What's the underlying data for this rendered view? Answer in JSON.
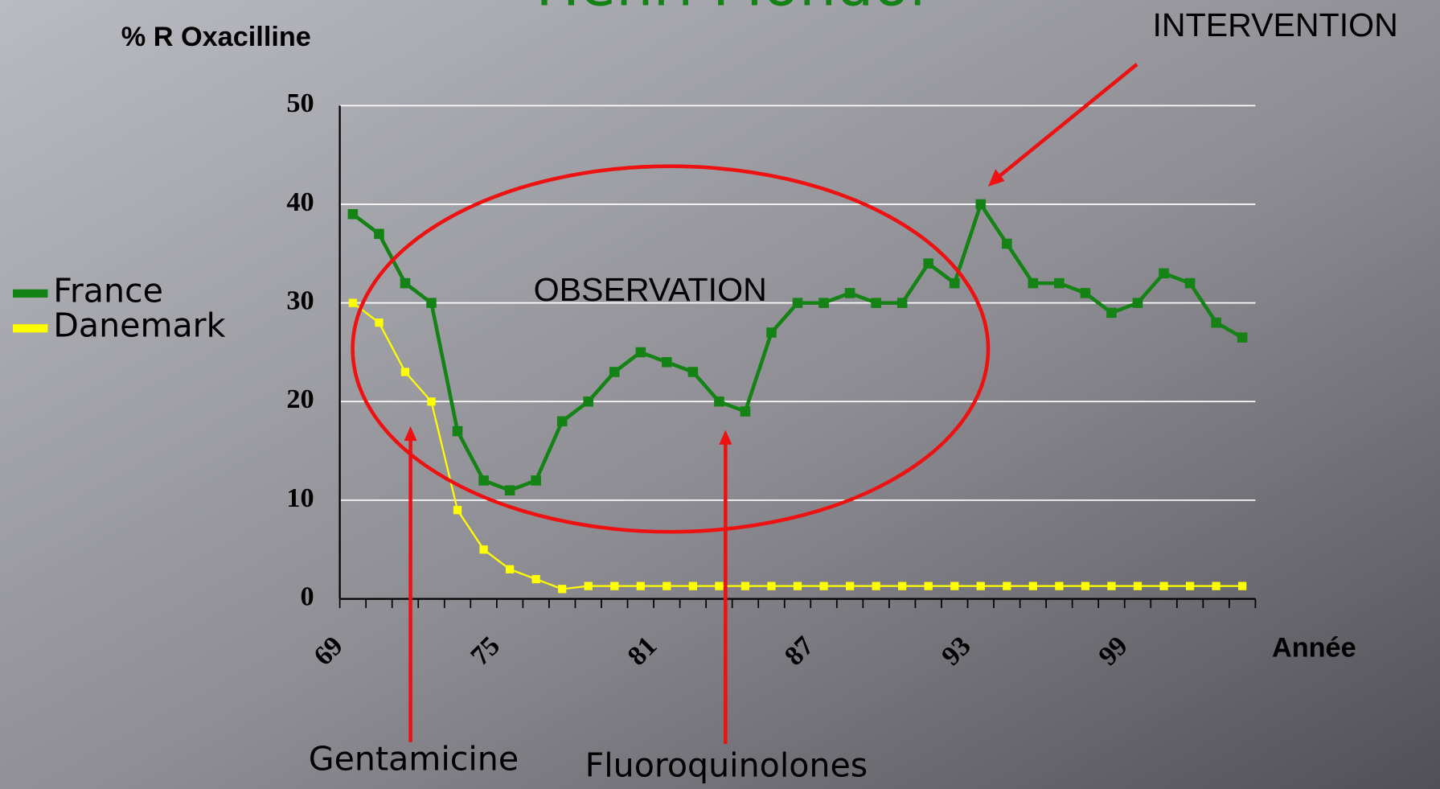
{
  "chart_data": {
    "type": "line",
    "title": "Henri Mondor",
    "y_label": "% R Oxacilline",
    "x_label": "Année",
    "annotations": [
      "INTERVENTION",
      "OBSERVATION",
      "Gentamicine",
      "Fluoroquinolones"
    ],
    "categories": [
      "69",
      null,
      null,
      null,
      null,
      null,
      "75",
      null,
      null,
      null,
      null,
      null,
      "81",
      null,
      null,
      null,
      null,
      null,
      "87",
      null,
      null,
      null,
      null,
      null,
      "93",
      null,
      null,
      null,
      null,
      null,
      "99",
      null,
      null,
      null,
      null
    ],
    "series": [
      {
        "name": "France",
        "color": "#148214",
        "values": [
          39,
          37,
          32,
          30,
          17,
          12,
          11,
          12,
          18,
          20,
          23,
          25,
          24,
          23,
          20,
          19,
          27,
          30,
          30,
          31,
          30,
          30,
          34,
          32,
          40,
          36,
          32,
          32,
          31,
          29,
          30,
          33,
          32,
          28,
          26.5
        ]
      },
      {
        "name": "Danemark",
        "color": "#ffff00",
        "values": [
          30,
          28,
          23,
          20,
          9,
          5,
          3,
          2,
          1,
          1.3,
          1.3,
          1.3,
          1.3,
          1.3,
          1.3,
          1.3,
          1.3,
          1.3,
          1.3,
          1.3,
          1.3,
          1.3,
          1.3,
          1.3,
          1.3,
          1.3,
          1.3,
          1.3,
          1.3,
          1.3,
          1.3,
          1.3,
          1.3,
          1.3,
          1.3
        ]
      }
    ],
    "ylim": [
      0,
      50
    ],
    "yticks": [
      0,
      10,
      20,
      30,
      40,
      50
    ],
    "grid": true,
    "legend": "left"
  }
}
